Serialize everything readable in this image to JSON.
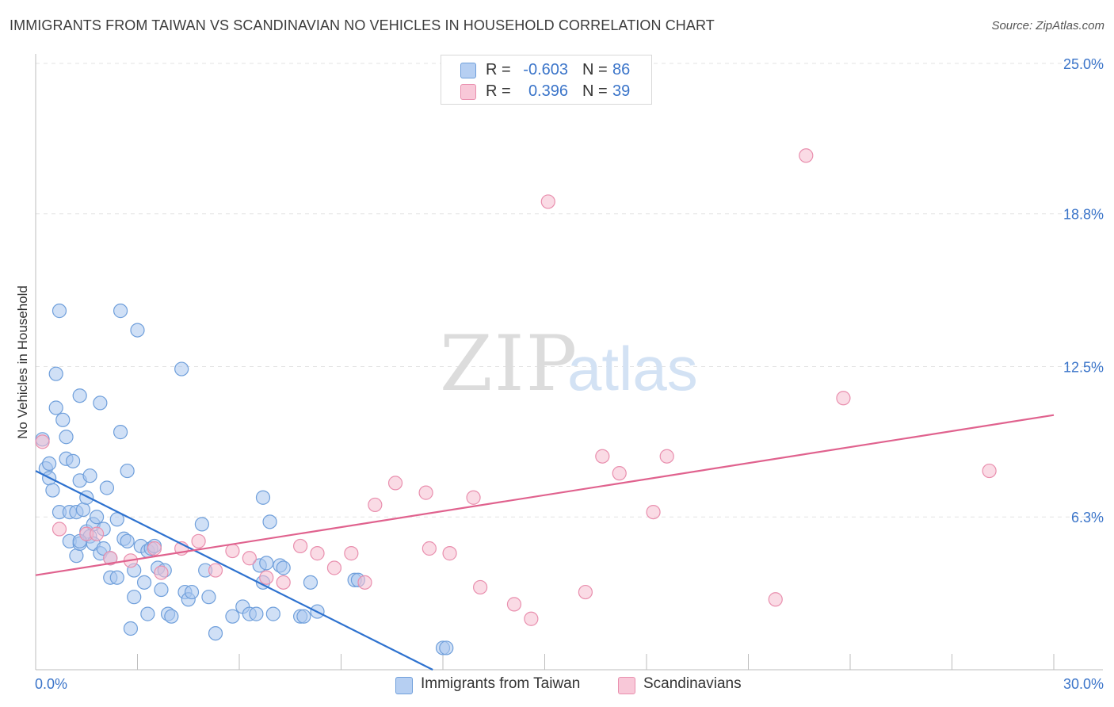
{
  "header": {
    "title": "IMMIGRANTS FROM TAIWAN VS SCANDINAVIAN NO VEHICLES IN HOUSEHOLD CORRELATION CHART",
    "source": "Source: ZipAtlas.com"
  },
  "watermark": {
    "zip": "ZIP",
    "atlas": "atlas"
  },
  "legend": {
    "rows": [
      {
        "r_label": "R =",
        "r_value": "-0.603",
        "n_label": "N =",
        "n_value": "86"
      },
      {
        "r_label": "R =",
        "r_value": "0.396",
        "n_label": "N =",
        "n_value": "39"
      }
    ]
  },
  "bottom_legend": {
    "items": [
      {
        "label": "Immigrants from Taiwan"
      },
      {
        "label": "Scandinavians"
      }
    ]
  },
  "chart_data": {
    "type": "scatter",
    "title": "IMMIGRANTS FROM TAIWAN VS SCANDINAVIAN NO VEHICLES IN HOUSEHOLD CORRELATION CHART",
    "xlabel": "",
    "ylabel": "No Vehicles in Household",
    "xlim": [
      0,
      30
    ],
    "ylim": [
      0,
      25
    ],
    "x_tick_labels": [
      "0.0%",
      "30.0%"
    ],
    "y_ticks": [
      6.3,
      12.5,
      18.8,
      25.0
    ],
    "y_tick_labels": [
      "6.3%",
      "12.5%",
      "18.8%",
      "25.0%"
    ],
    "grid": true,
    "legend_position": "top-center",
    "colors": {
      "taiwan_fill": "#a9c6ef",
      "taiwan_stroke": "#6f9fdb",
      "taiwan_line": "#2e72cf",
      "scand_fill": "#f6bdd0",
      "scand_stroke": "#e98fae",
      "scand_line": "#e0628e",
      "tick_label": "#3a74c9"
    },
    "series": [
      {
        "name": "Immigrants from Taiwan",
        "trend": {
          "x": [
            0.0,
            11.7
          ],
          "y": [
            8.2,
            0.0
          ]
        },
        "points": [
          [
            0.2,
            9.5
          ],
          [
            0.3,
            8.3
          ],
          [
            0.4,
            8.5
          ],
          [
            0.4,
            7.9
          ],
          [
            0.5,
            7.4
          ],
          [
            0.6,
            12.2
          ],
          [
            0.6,
            10.8
          ],
          [
            0.7,
            14.8
          ],
          [
            0.7,
            6.5
          ],
          [
            0.8,
            10.3
          ],
          [
            0.9,
            8.7
          ],
          [
            0.9,
            9.6
          ],
          [
            1.0,
            6.5
          ],
          [
            1.0,
            5.3
          ],
          [
            1.1,
            8.6
          ],
          [
            1.2,
            6.5
          ],
          [
            1.2,
            4.7
          ],
          [
            1.3,
            11.3
          ],
          [
            1.3,
            7.8
          ],
          [
            1.3,
            5.2
          ],
          [
            1.4,
            6.6
          ],
          [
            1.5,
            5.7
          ],
          [
            1.5,
            7.1
          ],
          [
            1.6,
            8.0
          ],
          [
            1.6,
            5.5
          ],
          [
            1.7,
            5.2
          ],
          [
            1.7,
            6.0
          ],
          [
            1.8,
            6.3
          ],
          [
            1.9,
            11.0
          ],
          [
            1.9,
            4.8
          ],
          [
            2.0,
            5.0
          ],
          [
            2.1,
            7.5
          ],
          [
            2.2,
            4.6
          ],
          [
            2.2,
            3.8
          ],
          [
            2.4,
            6.2
          ],
          [
            2.4,
            3.8
          ],
          [
            2.5,
            9.8
          ],
          [
            2.5,
            14.8
          ],
          [
            2.6,
            5.4
          ],
          [
            2.7,
            8.2
          ],
          [
            2.7,
            5.3
          ],
          [
            2.8,
            1.7
          ],
          [
            2.9,
            4.1
          ],
          [
            2.9,
            3.0
          ],
          [
            3.0,
            14.0
          ],
          [
            3.1,
            5.1
          ],
          [
            3.2,
            3.6
          ],
          [
            3.3,
            2.3
          ],
          [
            3.3,
            4.9
          ],
          [
            3.4,
            5.0
          ],
          [
            3.5,
            5.1
          ],
          [
            3.6,
            4.2
          ],
          [
            3.7,
            3.3
          ],
          [
            3.8,
            4.1
          ],
          [
            3.9,
            2.3
          ],
          [
            4.0,
            2.2
          ],
          [
            4.3,
            12.4
          ],
          [
            4.4,
            3.2
          ],
          [
            4.5,
            2.9
          ],
          [
            4.6,
            3.2
          ],
          [
            4.9,
            6.0
          ],
          [
            5.0,
            4.1
          ],
          [
            5.1,
            3.0
          ],
          [
            5.3,
            1.5
          ],
          [
            5.8,
            2.2
          ],
          [
            6.1,
            2.6
          ],
          [
            6.3,
            2.3
          ],
          [
            6.5,
            2.3
          ],
          [
            6.6,
            4.3
          ],
          [
            6.7,
            7.1
          ],
          [
            6.7,
            3.6
          ],
          [
            6.8,
            4.4
          ],
          [
            6.9,
            6.1
          ],
          [
            7.0,
            2.3
          ],
          [
            7.2,
            4.3
          ],
          [
            7.3,
            4.2
          ],
          [
            7.8,
            2.2
          ],
          [
            7.9,
            2.2
          ],
          [
            8.1,
            3.6
          ],
          [
            8.3,
            2.4
          ],
          [
            9.4,
            3.7
          ],
          [
            9.5,
            3.7
          ],
          [
            12.0,
            0.9
          ],
          [
            12.1,
            0.9
          ],
          [
            1.3,
            5.3
          ],
          [
            2.0,
            5.8
          ]
        ]
      },
      {
        "name": "Scandinavians",
        "trend": {
          "x": [
            0.0,
            30.0
          ],
          "y": [
            3.9,
            10.5
          ]
        },
        "points": [
          [
            0.2,
            9.4
          ],
          [
            0.7,
            5.8
          ],
          [
            1.5,
            5.6
          ],
          [
            1.8,
            5.6
          ],
          [
            2.2,
            4.6
          ],
          [
            2.8,
            4.5
          ],
          [
            3.5,
            5.0
          ],
          [
            3.7,
            4.0
          ],
          [
            4.3,
            5.0
          ],
          [
            4.8,
            5.3
          ],
          [
            5.3,
            4.1
          ],
          [
            5.8,
            4.9
          ],
          [
            6.3,
            4.6
          ],
          [
            6.8,
            3.8
          ],
          [
            7.3,
            3.6
          ],
          [
            7.8,
            5.1
          ],
          [
            8.3,
            4.8
          ],
          [
            8.8,
            4.2
          ],
          [
            9.3,
            4.8
          ],
          [
            9.7,
            3.6
          ],
          [
            10.0,
            6.8
          ],
          [
            10.6,
            7.7
          ],
          [
            11.5,
            7.3
          ],
          [
            11.6,
            5.0
          ],
          [
            12.2,
            4.8
          ],
          [
            12.9,
            7.1
          ],
          [
            13.1,
            3.4
          ],
          [
            14.1,
            2.7
          ],
          [
            14.6,
            2.1
          ],
          [
            15.1,
            19.3
          ],
          [
            16.2,
            3.2
          ],
          [
            16.7,
            8.8
          ],
          [
            17.2,
            8.1
          ],
          [
            18.2,
            6.5
          ],
          [
            18.6,
            8.8
          ],
          [
            21.8,
            2.9
          ],
          [
            22.7,
            21.2
          ],
          [
            23.8,
            11.2
          ],
          [
            28.1,
            8.2
          ]
        ]
      }
    ]
  }
}
